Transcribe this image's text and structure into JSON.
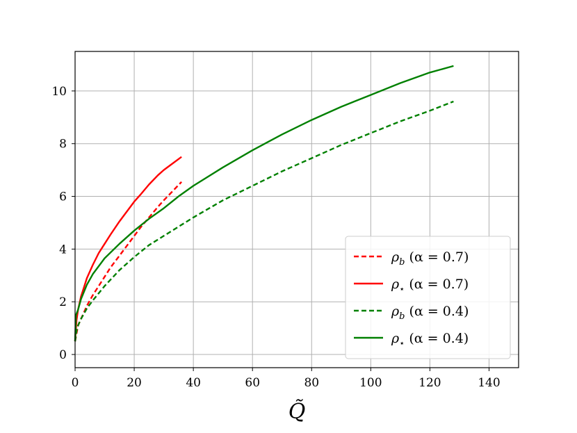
{
  "chart_data": {
    "type": "line",
    "title": "",
    "xlabel": "Q̃",
    "ylabel": "",
    "xlim": [
      0,
      150
    ],
    "ylim": [
      -0.5,
      11.5
    ],
    "xticks": [
      0,
      20,
      40,
      60,
      80,
      100,
      120,
      140
    ],
    "yticks": [
      0,
      2,
      4,
      6,
      8,
      10
    ],
    "grid": true,
    "legend_position": "lower-right",
    "series": [
      {
        "name": "ρ_b (α = 0.7)",
        "label_parts": {
          "symbol": "ρ",
          "sub": "b",
          "param": " (α = 0.7)"
        },
        "color": "#ff0000",
        "dash": "dashed",
        "x": [
          0,
          1,
          2,
          3,
          4,
          6,
          8,
          10,
          12,
          15,
          18,
          20,
          22,
          25,
          28,
          30,
          33,
          36
        ],
        "y": [
          0.5,
          1.1,
          1.35,
          1.6,
          1.85,
          2.25,
          2.6,
          2.95,
          3.3,
          3.75,
          4.2,
          4.5,
          4.8,
          5.2,
          5.6,
          5.85,
          6.2,
          6.55
        ]
      },
      {
        "name": "ρ_⋆ (α = 0.7)",
        "label_parts": {
          "symbol": "ρ",
          "sub": "⋆",
          "param": " (α = 0.7)"
        },
        "color": "#ff0000",
        "dash": "solid",
        "x": [
          0,
          0.5,
          1,
          2,
          3,
          4,
          6,
          8,
          10,
          12,
          15,
          18,
          20,
          22,
          25,
          28,
          30,
          33,
          36
        ],
        "y": [
          0.5,
          1.3,
          1.7,
          2.2,
          2.55,
          2.9,
          3.4,
          3.85,
          4.2,
          4.55,
          5.05,
          5.5,
          5.8,
          6.05,
          6.45,
          6.8,
          7.0,
          7.25,
          7.5
        ]
      },
      {
        "name": "ρ_b (α = 0.4)",
        "label_parts": {
          "symbol": "ρ",
          "sub": "b",
          "param": " (α = 0.4)"
        },
        "color": "#008000",
        "dash": "dashed",
        "x": [
          0,
          0.5,
          1,
          2,
          4,
          6,
          10,
          15,
          20,
          25,
          30,
          40,
          50,
          60,
          70,
          80,
          90,
          100,
          110,
          120,
          128
        ],
        "y": [
          0.5,
          0.9,
          1.1,
          1.35,
          1.75,
          2.05,
          2.6,
          3.2,
          3.7,
          4.15,
          4.5,
          5.2,
          5.85,
          6.4,
          6.95,
          7.45,
          7.95,
          8.4,
          8.85,
          9.25,
          9.6
        ]
      },
      {
        "name": "ρ_⋆ (α = 0.4)",
        "label_parts": {
          "symbol": "ρ",
          "sub": "⋆",
          "param": " (α = 0.4)"
        },
        "color": "#008000",
        "dash": "solid",
        "x": [
          0,
          0.3,
          1,
          2,
          4,
          6,
          10,
          15,
          20,
          25,
          30,
          35,
          40,
          50,
          60,
          70,
          80,
          90,
          100,
          110,
          120,
          128
        ],
        "y": [
          0.5,
          1.5,
          1.7,
          2.1,
          2.65,
          3.05,
          3.65,
          4.2,
          4.7,
          5.15,
          5.55,
          6.0,
          6.4,
          7.1,
          7.75,
          8.35,
          8.9,
          9.4,
          9.85,
          10.3,
          10.7,
          10.95
        ]
      }
    ]
  }
}
